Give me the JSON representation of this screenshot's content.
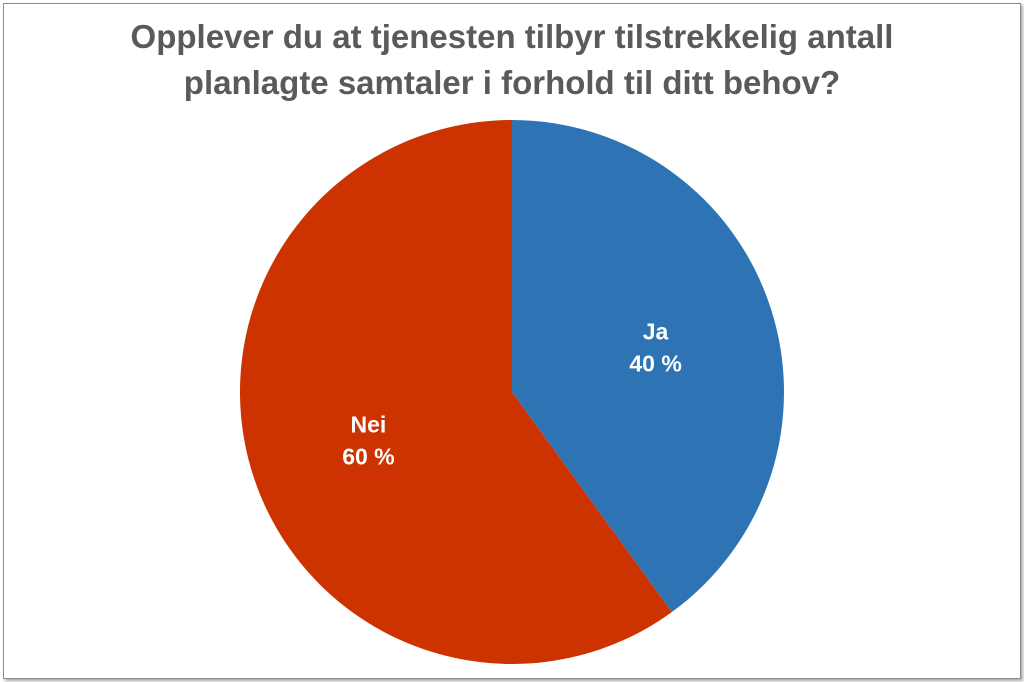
{
  "chart_data": {
    "type": "pie",
    "title_lines": [
      "Opplever du at tjenesten tilbyr tilstrekkelig antall",
      "planlagte samtaler i forhold til ditt behov?"
    ],
    "categories": [
      "Ja",
      "Nei"
    ],
    "values": [
      40,
      60
    ],
    "value_labels": [
      "40 %",
      "60 %"
    ],
    "colors": [
      "#2e74b5",
      "#cc3300"
    ],
    "legend": "none"
  }
}
